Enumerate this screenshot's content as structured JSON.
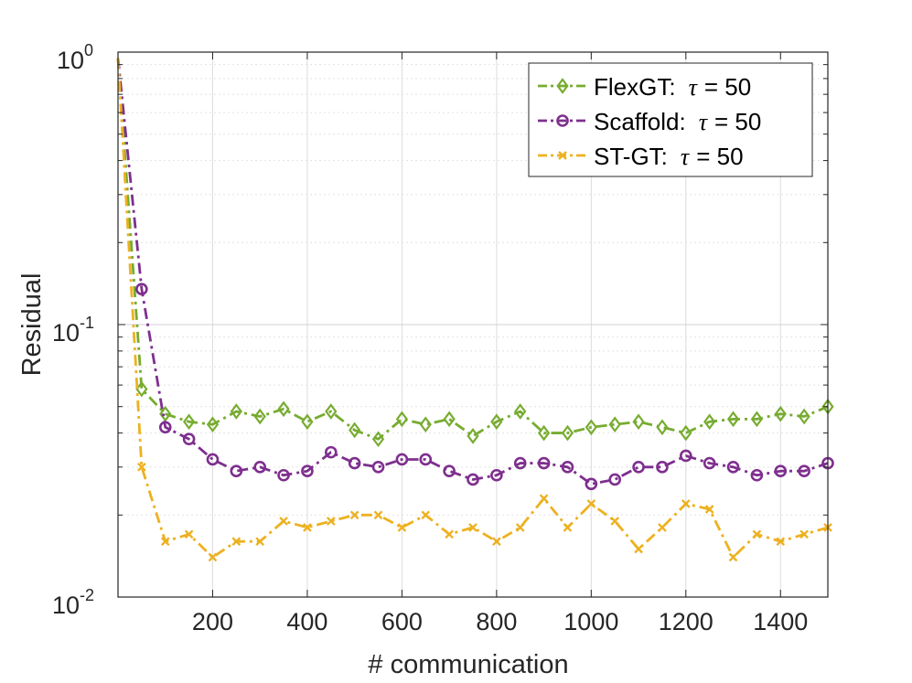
{
  "chart_data": {
    "type": "line",
    "title": "",
    "xlabel": "# communication",
    "ylabel": "Residual",
    "yscale": "log",
    "xlim": [
      0,
      1500
    ],
    "ylim": [
      0.01,
      1
    ],
    "grid": true,
    "legend_position": "top-right",
    "x_ticks": [
      200,
      400,
      600,
      800,
      1000,
      1200,
      1400
    ],
    "x_tick_labels": [
      "200",
      "400",
      "600",
      "800",
      "1000",
      "1200",
      "1400"
    ],
    "y_ticks": [
      {
        "value": 1,
        "base": "10",
        "exp": "0"
      },
      {
        "value": 0.1,
        "base": "10",
        "exp": "-1"
      },
      {
        "value": 0.01,
        "base": "10",
        "exp": "-2"
      }
    ],
    "x": [
      0,
      50,
      100,
      150,
      200,
      250,
      300,
      350,
      400,
      450,
      500,
      550,
      600,
      650,
      700,
      750,
      800,
      850,
      900,
      950,
      1000,
      1050,
      1100,
      1150,
      1200,
      1250,
      1300,
      1350,
      1400,
      1450,
      1500
    ],
    "series": [
      {
        "name": "FlexGT",
        "legend_name": "FlexGT:",
        "tau_text": "= 50",
        "color": "#77AC30",
        "marker": "diamond",
        "line_style": "dashdot",
        "values": [
          0.95,
          0.058,
          0.047,
          0.044,
          0.043,
          0.048,
          0.046,
          0.049,
          0.044,
          0.048,
          0.041,
          0.038,
          0.045,
          0.043,
          0.045,
          0.039,
          0.044,
          0.048,
          0.04,
          0.04,
          0.042,
          0.043,
          0.044,
          0.042,
          0.04,
          0.044,
          0.045,
          0.045,
          0.047,
          0.046,
          0.05
        ]
      },
      {
        "name": "Scaffold",
        "legend_name": "Scaffold:",
        "tau_text": "= 50",
        "color": "#7E2F8E",
        "marker": "circle",
        "line_style": "dashdot",
        "values": [
          0.95,
          0.135,
          0.042,
          0.038,
          0.032,
          0.029,
          0.03,
          0.028,
          0.029,
          0.034,
          0.031,
          0.03,
          0.032,
          0.032,
          0.029,
          0.027,
          0.028,
          0.031,
          0.031,
          0.03,
          0.026,
          0.027,
          0.03,
          0.03,
          0.033,
          0.031,
          0.03,
          0.028,
          0.029,
          0.029,
          0.031
        ]
      },
      {
        "name": "ST-GT",
        "legend_name": "ST-GT:",
        "tau_text": "= 50",
        "color": "#EDB120",
        "marker": "x",
        "line_style": "dashdot",
        "values": [
          0.95,
          0.03,
          0.016,
          0.017,
          0.014,
          0.016,
          0.016,
          0.019,
          0.018,
          0.019,
          0.02,
          0.02,
          0.018,
          0.02,
          0.017,
          0.018,
          0.016,
          0.018,
          0.023,
          0.018,
          0.022,
          0.019,
          0.015,
          0.018,
          0.022,
          0.021,
          0.014,
          0.017,
          0.016,
          0.017,
          0.018
        ]
      }
    ],
    "tau_symbol": "τ"
  }
}
